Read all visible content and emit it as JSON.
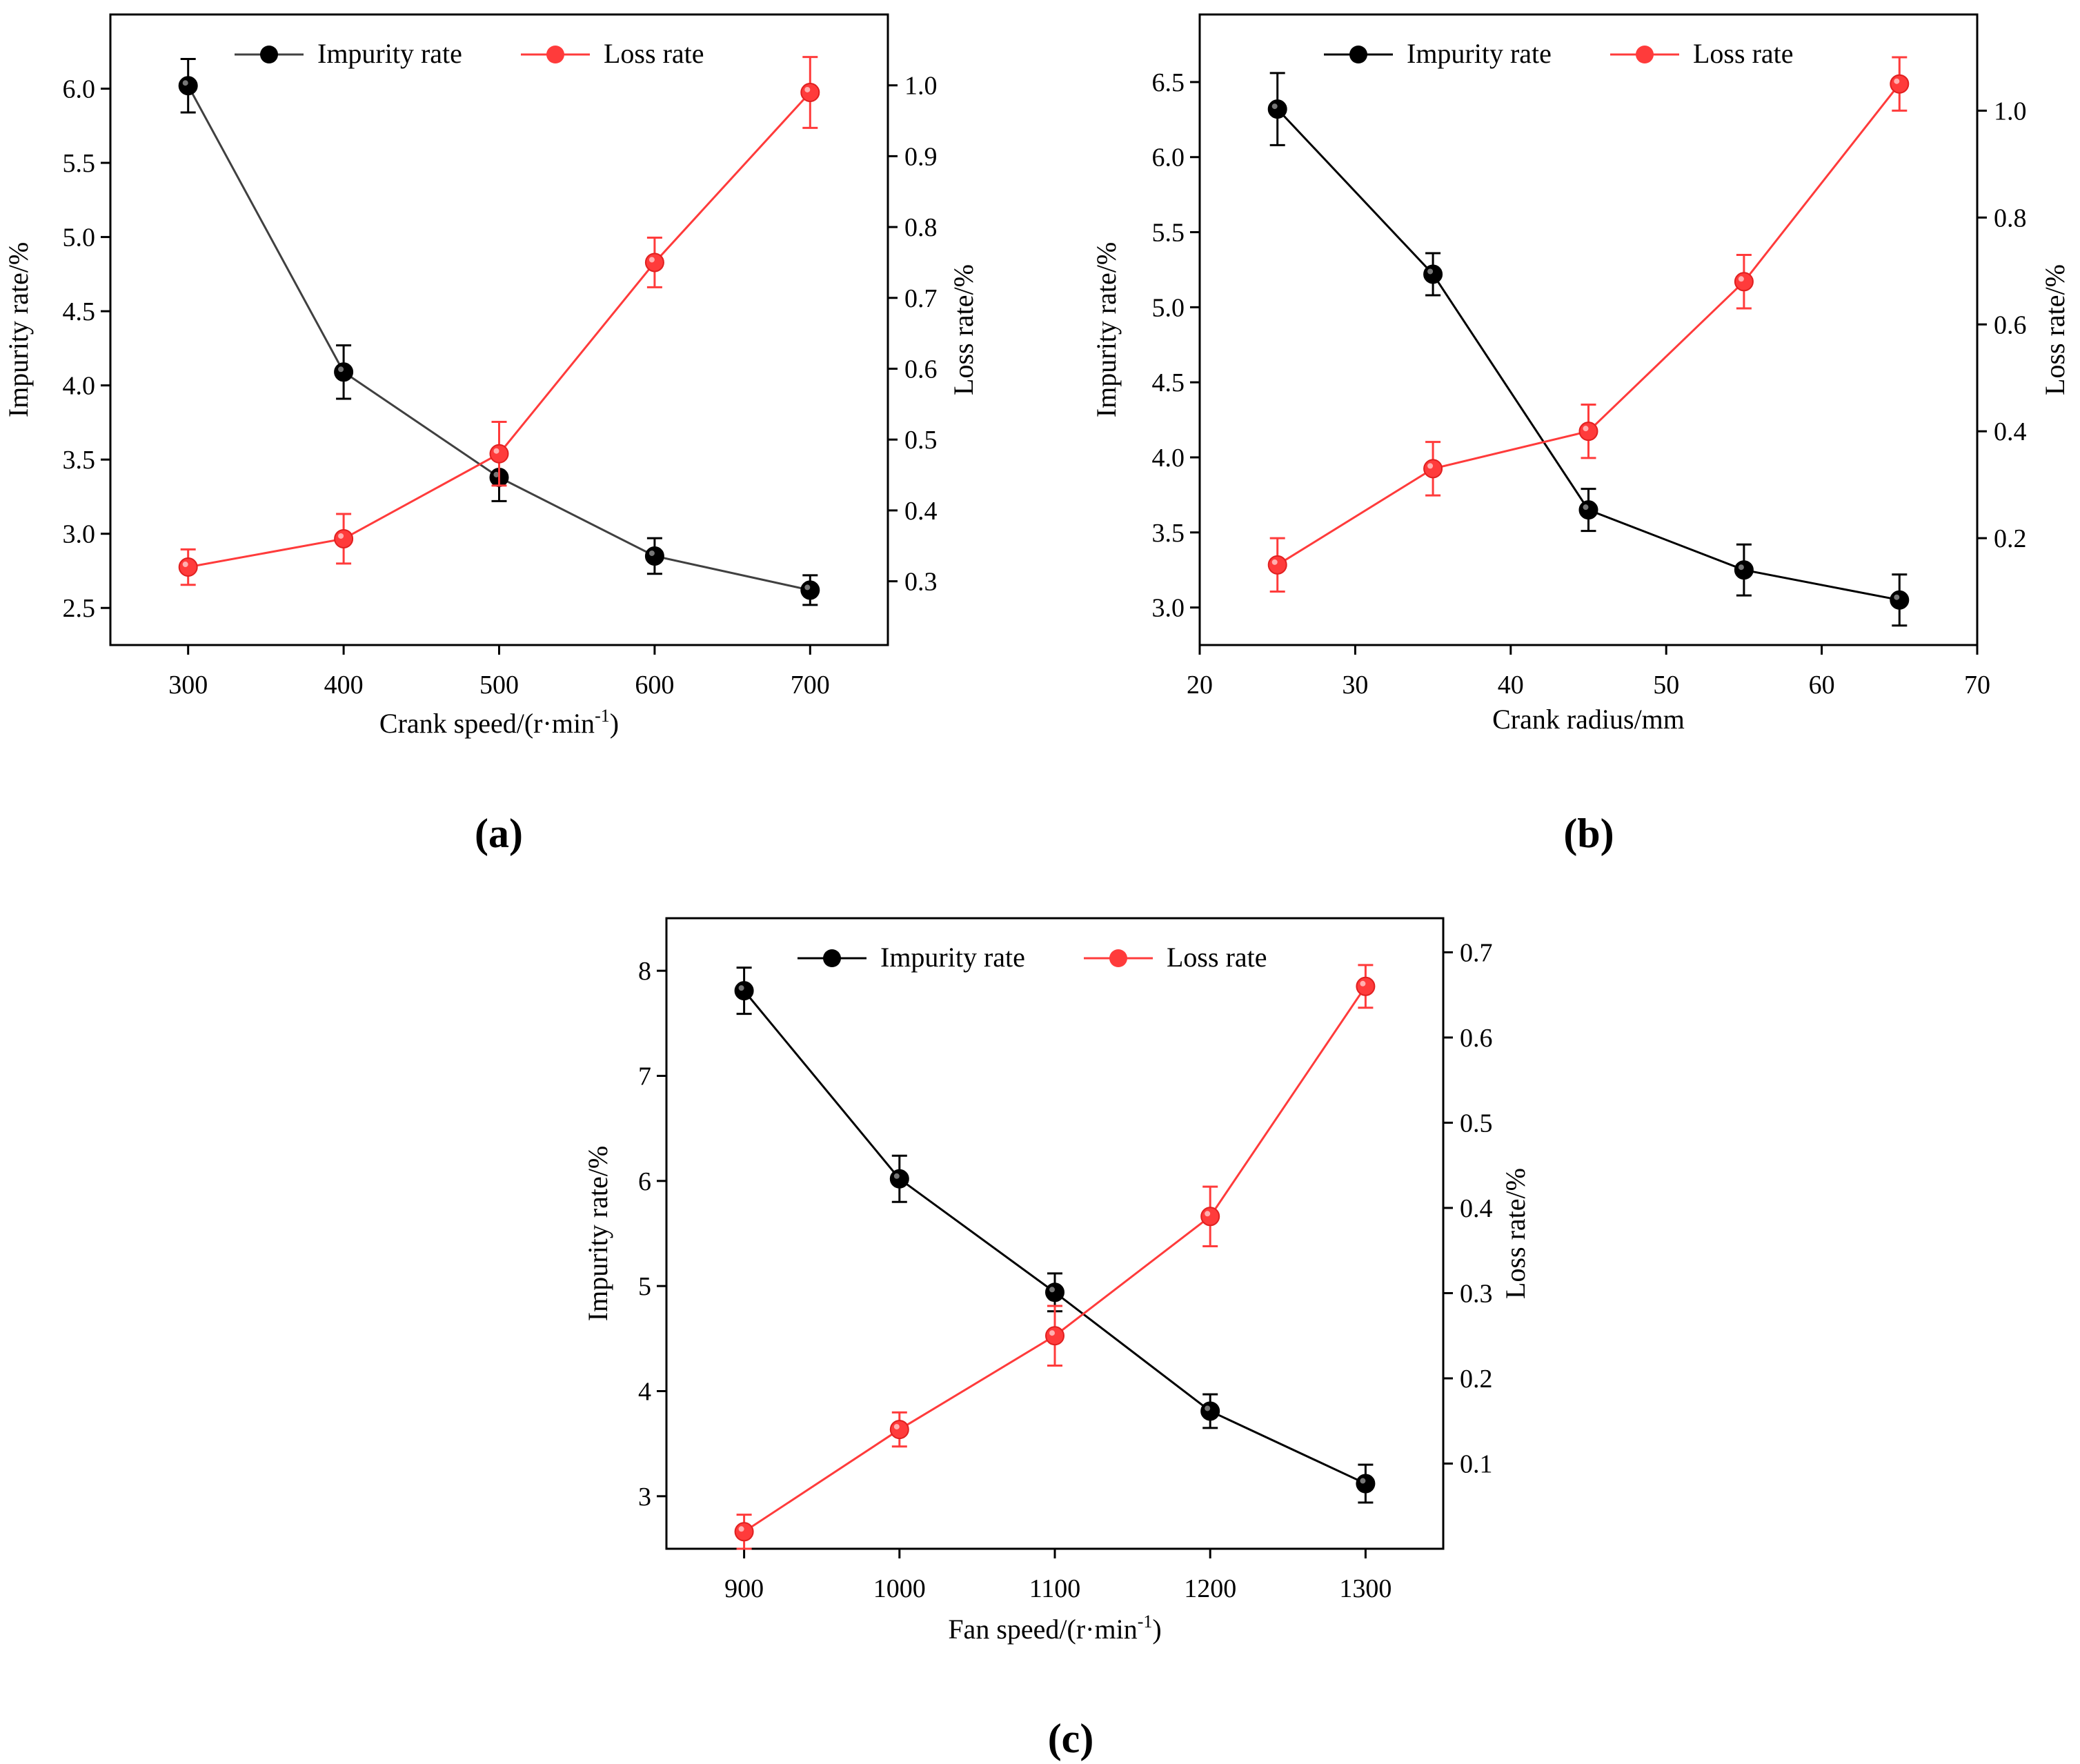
{
  "figure": {
    "panel_labels": [
      "(a)",
      "(b)",
      "(c)"
    ],
    "colors": {
      "impurity": "#000000",
      "impurity_line_a": "#404040",
      "loss": "#ff3b3b",
      "axis": "#000000"
    }
  },
  "chart_data": [
    {
      "type": "line",
      "panel": "(a)",
      "xlabel": "Crank speed/(r·min",
      "xlabel_sup": "-1",
      "xlabel_tail": ")",
      "ylabel_left": "Impurity rate/%",
      "ylabel_right": "Loss rate/%",
      "xlim": [
        250,
        750
      ],
      "xticks": [
        300,
        400,
        500,
        600,
        700
      ],
      "xtick_labels": [
        "300",
        "400",
        "500",
        "600",
        "700"
      ],
      "ylim_left": [
        2.25,
        6.5
      ],
      "yticks_left": [
        2.5,
        3.0,
        3.5,
        4.0,
        4.5,
        5.0,
        5.5,
        6.0
      ],
      "ytick_labels_left": [
        "2.5",
        "3.0",
        "3.5",
        "4.0",
        "4.5",
        "5.0",
        "5.5",
        "6.0"
      ],
      "ylim_right": [
        0.21,
        1.1
      ],
      "yticks_right": [
        0.3,
        0.4,
        0.5,
        0.6,
        0.7,
        0.8,
        0.9,
        1.0
      ],
      "ytick_labels_right": [
        "0.3",
        "0.4",
        "0.5",
        "0.6",
        "0.7",
        "0.8",
        "0.9",
        "1.0"
      ],
      "legend": [
        "Impurity rate",
        "Loss rate"
      ],
      "series": [
        {
          "name": "Impurity rate",
          "axis": "left",
          "x": [
            300,
            400,
            500,
            600,
            700
          ],
          "values": [
            6.02,
            4.09,
            3.38,
            2.85,
            2.62
          ],
          "errors": [
            0.18,
            0.18,
            0.16,
            0.12,
            0.1
          ]
        },
        {
          "name": "Loss rate",
          "axis": "right",
          "x": [
            300,
            400,
            500,
            600,
            700
          ],
          "values": [
            0.32,
            0.36,
            0.48,
            0.75,
            0.99
          ],
          "errors": [
            0.025,
            0.035,
            0.045,
            0.035,
            0.05
          ]
        }
      ]
    },
    {
      "type": "line",
      "panel": "(b)",
      "xlabel": "Crank radius/mm",
      "xlabel_sup": "",
      "xlabel_tail": "",
      "ylabel_left": "Impurity rate/%",
      "ylabel_right": "Loss rate/%",
      "xlim": [
        20,
        70
      ],
      "xticks": [
        20,
        30,
        40,
        50,
        60,
        70
      ],
      "xtick_labels": [
        "20",
        "30",
        "40",
        "50",
        "60",
        "70"
      ],
      "ylim_left": [
        2.75,
        6.95
      ],
      "yticks_left": [
        3.0,
        3.5,
        4.0,
        4.5,
        5.0,
        5.5,
        6.0,
        6.5
      ],
      "ytick_labels_left": [
        "3.0",
        "3.5",
        "4.0",
        "4.5",
        "5.0",
        "5.5",
        "6.0",
        "6.5"
      ],
      "ylim_right": [
        0.0,
        1.18
      ],
      "yticks_right": [
        0.2,
        0.4,
        0.6,
        0.8,
        1.0
      ],
      "ytick_labels_right": [
        "0.2",
        "0.4",
        "0.6",
        "0.8",
        "1.0"
      ],
      "legend": [
        "Impurity rate",
        "Loss rate"
      ],
      "series": [
        {
          "name": "Impurity rate",
          "axis": "left",
          "x": [
            25,
            35,
            45,
            55,
            65
          ],
          "values": [
            6.32,
            5.22,
            3.65,
            3.25,
            3.05
          ],
          "errors": [
            0.24,
            0.14,
            0.14,
            0.17,
            0.17
          ]
        },
        {
          "name": "Loss rate",
          "axis": "right",
          "x": [
            25,
            35,
            45,
            55,
            65
          ],
          "values": [
            0.15,
            0.33,
            0.4,
            0.68,
            1.05
          ],
          "errors": [
            0.05,
            0.05,
            0.05,
            0.05,
            0.05
          ]
        }
      ]
    },
    {
      "type": "line",
      "panel": "(c)",
      "xlabel": "Fan speed/(r·min",
      "xlabel_sup": "-1",
      "xlabel_tail": ")",
      "ylabel_left": "Impurity rate/%",
      "ylabel_right": "Loss rate/%",
      "xlim": [
        850,
        1350
      ],
      "xticks": [
        900,
        1000,
        1100,
        1200,
        1300
      ],
      "xtick_labels": [
        "900",
        "1000",
        "1100",
        "1200",
        "1300"
      ],
      "ylim_left": [
        2.5,
        8.5
      ],
      "yticks_left": [
        3,
        4,
        5,
        6,
        7,
        8
      ],
      "ytick_labels_left": [
        "3",
        "4",
        "5",
        "6",
        "7",
        "8"
      ],
      "ylim_right": [
        0.0,
        0.74
      ],
      "yticks_right": [
        0.1,
        0.2,
        0.3,
        0.4,
        0.5,
        0.6,
        0.7
      ],
      "ytick_labels_right": [
        "0.1",
        "0.2",
        "0.3",
        "0.4",
        "0.5",
        "0.6",
        "0.7"
      ],
      "legend": [
        "Impurity rate",
        "Loss rate"
      ],
      "series": [
        {
          "name": "Impurity rate",
          "axis": "left",
          "x": [
            900,
            1000,
            1100,
            1200,
            1300
          ],
          "values": [
            7.81,
            6.02,
            4.94,
            3.81,
            3.12
          ],
          "errors": [
            0.22,
            0.22,
            0.18,
            0.16,
            0.18
          ]
        },
        {
          "name": "Loss rate",
          "axis": "right",
          "x": [
            900,
            1000,
            1100,
            1200,
            1300
          ],
          "values": [
            0.02,
            0.14,
            0.25,
            0.39,
            0.66
          ],
          "errors": [
            0.02,
            0.02,
            0.035,
            0.035,
            0.025
          ]
        }
      ]
    }
  ]
}
